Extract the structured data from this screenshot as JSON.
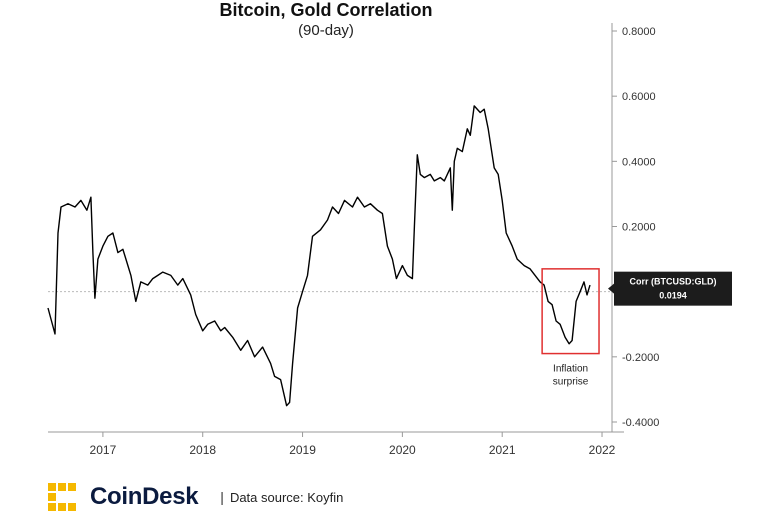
{
  "chart_data": {
    "type": "line",
    "title": "Bitcoin, Gold Correlation",
    "subtitle": "(90-day)",
    "x_ticks": [
      "2017",
      "2018",
      "2019",
      "2020",
      "2021",
      "2022"
    ],
    "y_ticks": [
      "0.8000",
      "0.6000",
      "0.4000",
      "0.2000",
      "-0.2000",
      "-0.4000"
    ],
    "ylim": [
      -0.4,
      0.8
    ],
    "xlim": [
      2016.45,
      2022.1
    ],
    "zero_line": true,
    "grid": false,
    "series": [
      {
        "points": [
          [
            2016.45,
            -0.05
          ],
          [
            2016.52,
            -0.13
          ],
          [
            2016.55,
            0.18
          ],
          [
            2016.58,
            0.26
          ],
          [
            2016.65,
            0.27
          ],
          [
            2016.72,
            0.26
          ],
          [
            2016.78,
            0.28
          ],
          [
            2016.84,
            0.25
          ],
          [
            2016.88,
            0.29
          ],
          [
            2016.9,
            0.12
          ],
          [
            2016.92,
            -0.02
          ],
          [
            2016.95,
            0.1
          ],
          [
            2017.0,
            0.14
          ],
          [
            2017.05,
            0.17
          ],
          [
            2017.1,
            0.18
          ],
          [
            2017.15,
            0.12
          ],
          [
            2017.2,
            0.13
          ],
          [
            2017.28,
            0.05
          ],
          [
            2017.33,
            -0.03
          ],
          [
            2017.38,
            0.03
          ],
          [
            2017.45,
            0.02
          ],
          [
            2017.5,
            0.04
          ],
          [
            2017.55,
            0.05
          ],
          [
            2017.6,
            0.06
          ],
          [
            2017.68,
            0.05
          ],
          [
            2017.75,
            0.02
          ],
          [
            2017.8,
            0.04
          ],
          [
            2017.88,
            -0.01
          ],
          [
            2017.93,
            -0.07
          ],
          [
            2018.0,
            -0.12
          ],
          [
            2018.05,
            -0.1
          ],
          [
            2018.12,
            -0.09
          ],
          [
            2018.18,
            -0.12
          ],
          [
            2018.22,
            -0.11
          ],
          [
            2018.3,
            -0.14
          ],
          [
            2018.38,
            -0.18
          ],
          [
            2018.45,
            -0.15
          ],
          [
            2018.52,
            -0.2
          ],
          [
            2018.6,
            -0.17
          ],
          [
            2018.68,
            -0.22
          ],
          [
            2018.72,
            -0.26
          ],
          [
            2018.78,
            -0.27
          ],
          [
            2018.84,
            -0.35
          ],
          [
            2018.87,
            -0.34
          ],
          [
            2018.9,
            -0.22
          ],
          [
            2018.95,
            -0.05
          ],
          [
            2019.0,
            0.0
          ],
          [
            2019.05,
            0.05
          ],
          [
            2019.1,
            0.17
          ],
          [
            2019.18,
            0.19
          ],
          [
            2019.25,
            0.22
          ],
          [
            2019.3,
            0.26
          ],
          [
            2019.36,
            0.24
          ],
          [
            2019.42,
            0.28
          ],
          [
            2019.5,
            0.26
          ],
          [
            2019.55,
            0.29
          ],
          [
            2019.62,
            0.26
          ],
          [
            2019.68,
            0.27
          ],
          [
            2019.75,
            0.25
          ],
          [
            2019.8,
            0.24
          ],
          [
            2019.85,
            0.14
          ],
          [
            2019.9,
            0.1
          ],
          [
            2019.94,
            0.04
          ],
          [
            2020.0,
            0.08
          ],
          [
            2020.05,
            0.05
          ],
          [
            2020.1,
            0.04
          ],
          [
            2020.12,
            0.2
          ],
          [
            2020.15,
            0.42
          ],
          [
            2020.18,
            0.36
          ],
          [
            2020.22,
            0.35
          ],
          [
            2020.28,
            0.36
          ],
          [
            2020.32,
            0.34
          ],
          [
            2020.38,
            0.35
          ],
          [
            2020.42,
            0.34
          ],
          [
            2020.48,
            0.38
          ],
          [
            2020.5,
            0.25
          ],
          [
            2020.52,
            0.4
          ],
          [
            2020.55,
            0.44
          ],
          [
            2020.6,
            0.43
          ],
          [
            2020.65,
            0.5
          ],
          [
            2020.68,
            0.48
          ],
          [
            2020.72,
            0.57
          ],
          [
            2020.78,
            0.55
          ],
          [
            2020.82,
            0.56
          ],
          [
            2020.86,
            0.5
          ],
          [
            2020.92,
            0.38
          ],
          [
            2020.96,
            0.36
          ],
          [
            2021.0,
            0.28
          ],
          [
            2021.04,
            0.18
          ],
          [
            2021.1,
            0.14
          ],
          [
            2021.15,
            0.1
          ],
          [
            2021.22,
            0.08
          ],
          [
            2021.28,
            0.07
          ],
          [
            2021.33,
            0.05
          ],
          [
            2021.38,
            0.03
          ],
          [
            2021.42,
            0.02
          ],
          [
            2021.46,
            -0.03
          ],
          [
            2021.5,
            -0.04
          ],
          [
            2021.54,
            -0.09
          ],
          [
            2021.58,
            -0.1
          ],
          [
            2021.63,
            -0.14
          ],
          [
            2021.67,
            -0.16
          ],
          [
            2021.7,
            -0.15
          ],
          [
            2021.74,
            -0.03
          ],
          [
            2021.78,
            0.0
          ],
          [
            2021.82,
            0.03
          ],
          [
            2021.85,
            -0.01
          ],
          [
            2021.88,
            0.02
          ]
        ]
      }
    ],
    "callout": {
      "label": "Corr (BTCUSD:GLD)",
      "value": "0.0194"
    },
    "annotation": {
      "line1": "Inflation",
      "line2": "surprise",
      "box_color": "#e03030"
    },
    "line_color": "#000000"
  },
  "footer": {
    "brand": "CoinDesk",
    "separator": "|",
    "source": "Data source: Koyfin",
    "logo_color": "#f5b800"
  }
}
